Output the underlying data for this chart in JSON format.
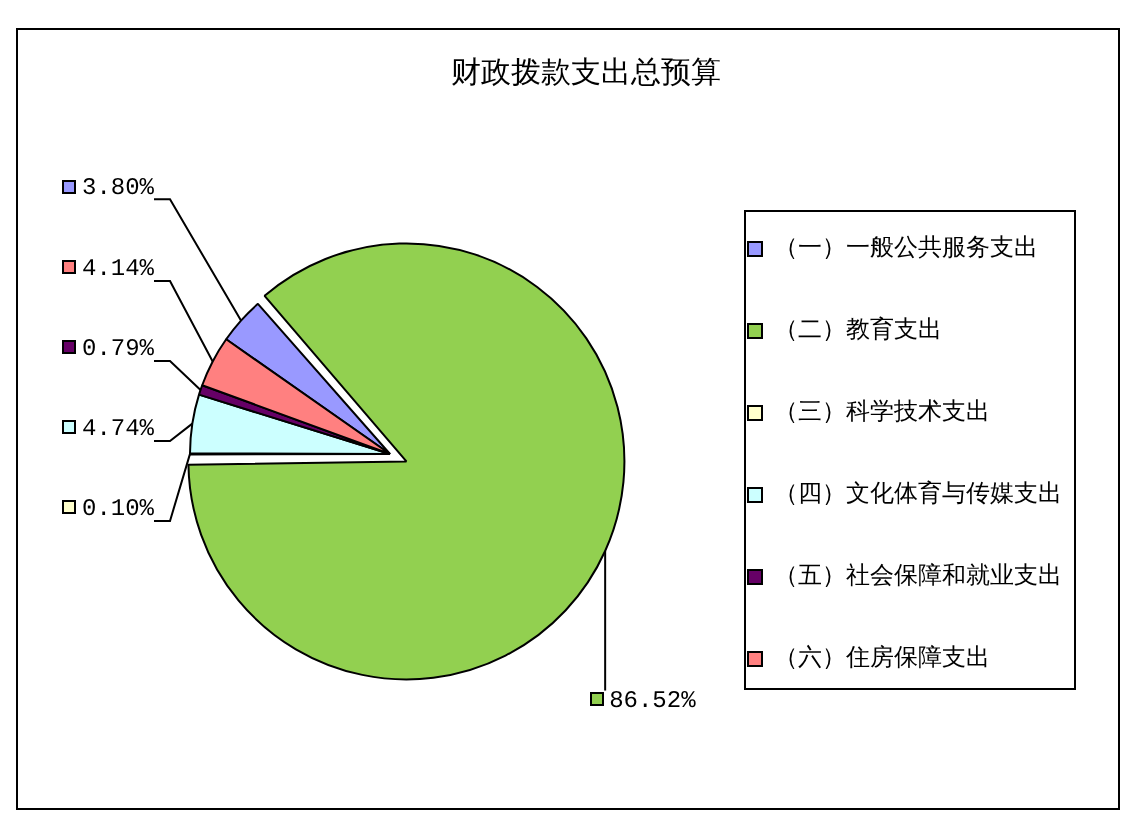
{
  "chart_data": {
    "type": "pie",
    "title": "财政拨款支出总预算",
    "categories": [
      "（一）一般公共服务支出",
      "（二）教育支出",
      "（三）科学技术支出",
      "（四）文化体育与传媒支出",
      "（五）社会保障和就业支出",
      "（六）住房保障支出"
    ],
    "values": [
      3.8,
      86.52,
      0.1,
      4.74,
      0.79,
      4.14
    ],
    "colors": [
      "#9999ff",
      "#92d050",
      "#ffffcc",
      "#ccffff",
      "#660066",
      "#ff8080"
    ],
    "value_labels": [
      "3.80%",
      "86.52%",
      "0.10%",
      "4.74%",
      "0.79%",
      "4.14%"
    ],
    "legend": "right"
  }
}
